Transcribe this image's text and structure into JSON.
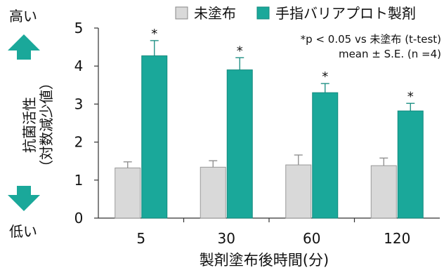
{
  "chart_data": {
    "type": "bar",
    "categories": [
      "5",
      "30",
      "60",
      "120"
    ],
    "series": [
      {
        "name": "未塗布",
        "color": "#d9d9d9",
        "values": [
          1.32,
          1.34,
          1.4,
          1.38
        ],
        "errors": [
          0.16,
          0.17,
          0.26,
          0.2
        ]
      },
      {
        "name": "手指バリアプロト製剤",
        "color": "#1aa89a",
        "values": [
          4.27,
          3.9,
          3.3,
          2.82
        ],
        "errors": [
          0.4,
          0.32,
          0.24,
          0.2
        ]
      }
    ],
    "significance": [
      "*",
      "*",
      "*",
      "*"
    ],
    "xlabel": "製剤塗布後時間(分)",
    "ylabel_line1": "抗菌活性",
    "ylabel_line2": "（対数減少値）",
    "ylim": [
      0,
      5
    ],
    "yticks": [
      "0",
      "1",
      "2",
      "3",
      "4",
      "5"
    ],
    "annotation_line1": "*p < 0.05 vs 未塗布 (t-test)",
    "annotation_line2": "mean ± S.E. (n =4)",
    "high_label": "高い",
    "low_label": "低い",
    "legend_position": "top-right",
    "grid": false
  }
}
